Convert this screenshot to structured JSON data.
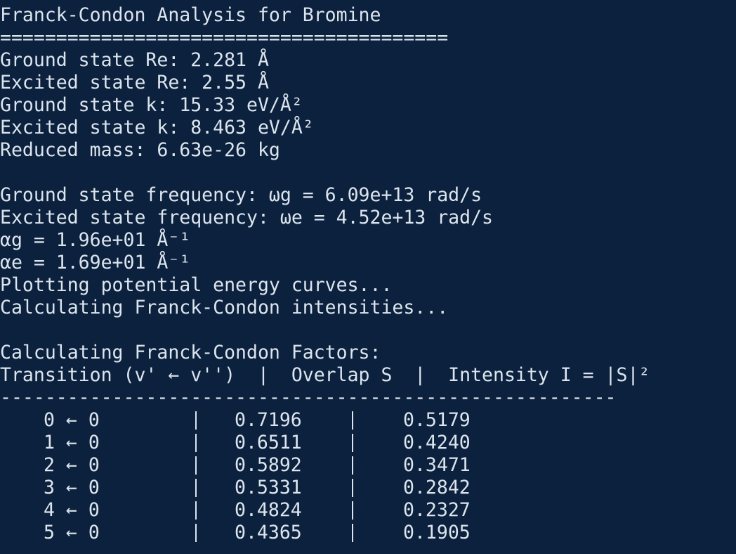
{
  "header": {
    "title": "Franck-Condon Analysis for Bromine",
    "separator": "========================================"
  },
  "parameters": [
    "Ground state Re: 2.281 Å",
    "Excited state Re: 2.55 Å",
    "Ground state k: 15.33 eV/Å²",
    "Excited state k: 8.463 eV/Å²",
    "Reduced mass: 6.63e-26 kg"
  ],
  "frequencies": [
    "Ground state frequency: ωg = 6.09e+13 rad/s",
    "Excited state frequency: ωe = 4.52e+13 rad/s",
    "αg = 1.96e+01 Å⁻¹",
    "αe = 1.69e+01 Å⁻¹",
    "Plotting potential energy curves...",
    "Calculating Franck-Condon intensities..."
  ],
  "fc_factors": {
    "heading": "Calculating Franck-Condon Factors:",
    "column_header": "Transition (v' ← v'')  |  Overlap S  |  Intensity I = |S|²",
    "rule": "-------------------------------------------------------",
    "rows": [
      {
        "transition": "0 ← 0",
        "overlap": "0.7196",
        "intensity": "0.5179"
      },
      {
        "transition": "1 ← 0",
        "overlap": "0.6511",
        "intensity": "0.4240"
      },
      {
        "transition": "2 ← 0",
        "overlap": "0.5892",
        "intensity": "0.3471"
      },
      {
        "transition": "3 ← 0",
        "overlap": "0.5331",
        "intensity": "0.2842"
      },
      {
        "transition": "4 ← 0",
        "overlap": "0.4824",
        "intensity": "0.2327"
      },
      {
        "transition": "5 ← 0",
        "overlap": "0.4365",
        "intensity": "0.1905"
      }
    ]
  }
}
